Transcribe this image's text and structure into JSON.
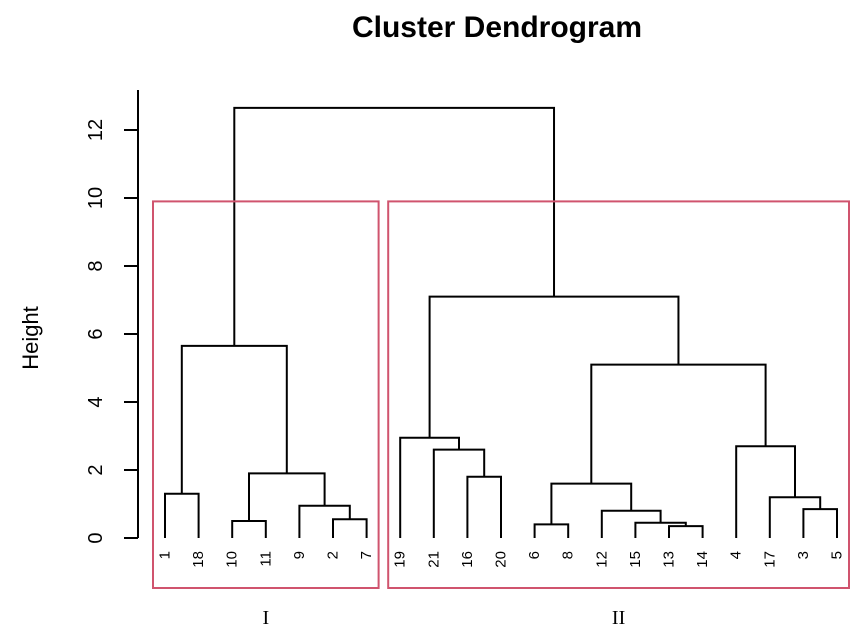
{
  "chart_data": {
    "type": "dendrogram",
    "title": "Cluster Dendrogram",
    "ylabel": "Height",
    "ylim": [
      0,
      13
    ],
    "yticks": [
      "0",
      "2",
      "4",
      "6",
      "8",
      "10",
      "12"
    ],
    "leaves": [
      "1",
      "18",
      "10",
      "11",
      "9",
      "2",
      "7",
      "19",
      "21",
      "16",
      "20",
      "6",
      "8",
      "12",
      "15",
      "13",
      "14",
      "4",
      "17",
      "3",
      "5"
    ],
    "merges": [
      {
        "left": "1",
        "right": "18",
        "height": 1.3
      },
      {
        "left": "10",
        "right": "11",
        "height": 0.5
      },
      {
        "left": "2",
        "right": "7",
        "height": 0.55
      },
      {
        "left": "9",
        "right": "2+7",
        "height": 0.95
      },
      {
        "left": "10+11",
        "right": "9+2+7",
        "height": 1.9
      },
      {
        "left": "1+18",
        "right": "10+11+9+2+7",
        "height": 5.65
      },
      {
        "left": "16",
        "right": "20",
        "height": 1.8
      },
      {
        "left": "21",
        "right": "16+20",
        "height": 2.6
      },
      {
        "left": "19",
        "right": "21+16+20",
        "height": 2.95
      },
      {
        "left": "6",
        "right": "8",
        "height": 0.4
      },
      {
        "left": "13",
        "right": "14",
        "height": 0.35
      },
      {
        "left": "15",
        "right": "13+14",
        "height": 0.45
      },
      {
        "left": "12",
        "right": "15+13+14",
        "height": 0.8
      },
      {
        "left": "6+8",
        "right": "12+15+13+14",
        "height": 1.6
      },
      {
        "left": "3",
        "right": "5",
        "height": 0.85
      },
      {
        "left": "17",
        "right": "3+5",
        "height": 1.2
      },
      {
        "left": "4",
        "right": "17+3+5",
        "height": 2.7
      },
      {
        "left": "6+8+12+15+13+14",
        "right": "4+17+3+5",
        "height": 5.1
      },
      {
        "left": "19+21+16+20",
        "right": "6+8+12+15+13+14+4+17+3+5",
        "height": 7.1
      },
      {
        "left": "1+18+10+11+9+2+7",
        "right": "19+21+16+20+6+8+12+15+13+14+4+17+3+5",
        "height": 12.65
      }
    ],
    "clusters": [
      {
        "label": "I",
        "first": "1",
        "last": "7"
      },
      {
        "label": "II",
        "first": "19",
        "last": "5"
      }
    ],
    "box_color": "#d0546e"
  }
}
